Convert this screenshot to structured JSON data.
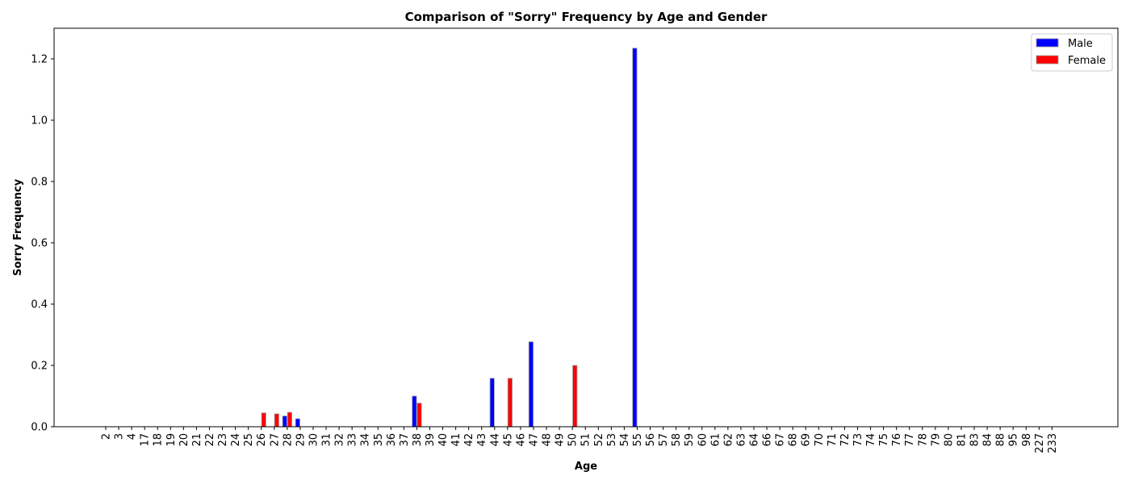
{
  "chart_data": {
    "type": "bar",
    "title": "Comparison of \"Sorry\" Frequency by Age and Gender",
    "xlabel": "Age",
    "ylabel": "Sorry Frequency",
    "ylim": [
      0,
      1.3
    ],
    "yticks": [
      "0.0",
      "0.2",
      "0.4",
      "0.6",
      "0.8",
      "1.0",
      "1.2"
    ],
    "grid": false,
    "legend_position": "top-right",
    "categories": [
      "2",
      "3",
      "4",
      "17",
      "18",
      "19",
      "20",
      "21",
      "22",
      "23",
      "24",
      "25",
      "26",
      "27",
      "28",
      "29",
      "30",
      "31",
      "32",
      "33",
      "34",
      "35",
      "36",
      "37",
      "38",
      "39",
      "40",
      "41",
      "42",
      "43",
      "44",
      "45",
      "46",
      "47",
      "48",
      "49",
      "50",
      "51",
      "52",
      "53",
      "54",
      "55",
      "56",
      "57",
      "58",
      "59",
      "60",
      "61",
      "62",
      "63",
      "64",
      "66",
      "67",
      "68",
      "69",
      "70",
      "71",
      "72",
      "73",
      "74",
      "75",
      "76",
      "77",
      "78",
      "79",
      "80",
      "81",
      "83",
      "84",
      "88",
      "95",
      "98",
      "227",
      "233"
    ],
    "series": [
      {
        "name": "Male",
        "color": "#0000ff",
        "values": [
          0,
          0,
          0,
          0,
          0,
          0,
          0,
          0,
          0,
          0,
          0,
          0,
          0,
          0,
          0.035,
          0.026,
          0,
          0,
          0,
          0,
          0,
          0,
          0,
          0,
          0.1,
          0,
          0,
          0,
          0,
          0,
          0.158,
          0,
          0,
          0.277,
          0,
          0,
          0,
          0,
          0,
          0,
          0,
          1.235,
          0,
          0,
          0,
          0,
          0,
          0,
          0,
          0,
          0,
          0,
          0,
          0,
          0,
          0,
          0,
          0,
          0,
          0,
          0,
          0,
          0,
          0,
          0,
          0,
          0,
          0,
          0,
          0,
          0,
          0,
          0,
          0
        ]
      },
      {
        "name": "Female",
        "color": "#ff0000",
        "values": [
          0,
          0,
          0,
          0,
          0,
          0,
          0,
          0,
          0,
          0,
          0,
          0,
          0.045,
          0.042,
          0.047,
          0,
          0,
          0,
          0,
          0,
          0,
          0,
          0,
          0,
          0.077,
          0,
          0,
          0,
          0,
          0,
          0,
          0.158,
          0,
          0,
          0,
          0,
          0.2,
          0,
          0,
          0,
          0,
          0,
          0,
          0,
          0,
          0,
          0,
          0,
          0,
          0,
          0,
          0,
          0,
          0,
          0,
          0,
          0,
          0,
          0,
          0,
          0,
          0,
          0,
          0,
          0,
          0,
          0,
          0,
          0,
          0,
          0,
          0,
          0,
          0
        ]
      }
    ]
  }
}
